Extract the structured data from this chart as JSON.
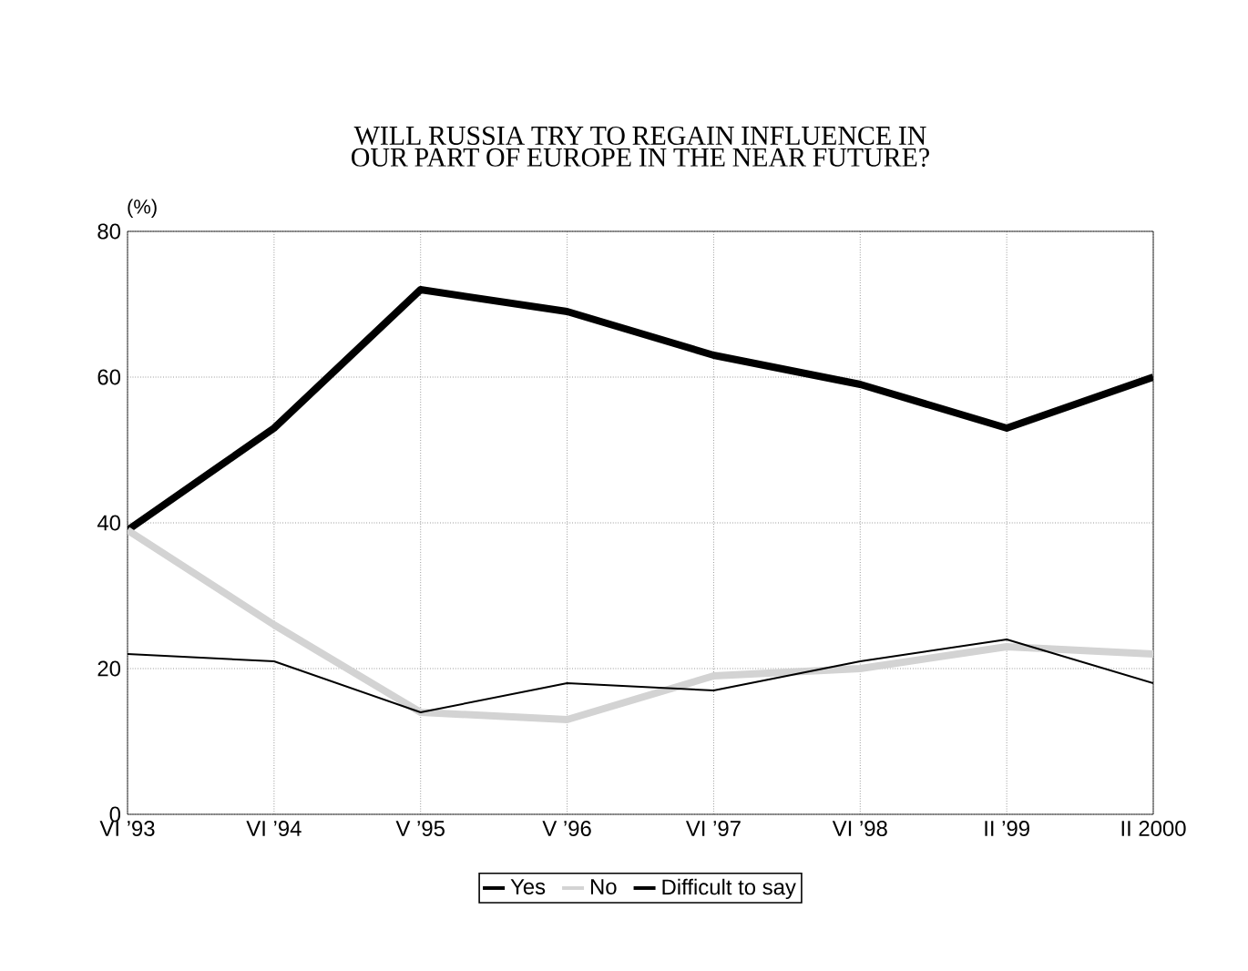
{
  "chart_data": {
    "type": "line",
    "title": "WILL RUSSIA TRY TO REGAIN INFLUENCE IN OUR PART OF EUROPE IN THE NEAR FUTURE?",
    "ylabel": "(%)",
    "categories": [
      "VI ’93",
      "VI ’94",
      "V ’95",
      "V ’96",
      "VI ’97",
      "VI ’98",
      "II ’99",
      "II 2000"
    ],
    "series": [
      {
        "name": "Yes",
        "color": "#000000",
        "values": [
          39,
          53,
          72,
          69,
          63,
          59,
          53,
          60
        ]
      },
      {
        "name": "No",
        "color": "#d3d3d3",
        "values": [
          39,
          26,
          14,
          13,
          19,
          20,
          23,
          22
        ]
      },
      {
        "name": "Difficult to say",
        "color": "#000000",
        "values": [
          22,
          21,
          14,
          18,
          17,
          21,
          24,
          18
        ]
      }
    ],
    "ylim": [
      0,
      80
    ],
    "yticks": [
      0,
      20,
      40,
      60,
      80
    ],
    "grid": true,
    "legend": "bottom",
    "marker": "none",
    "line_style": "solid"
  }
}
